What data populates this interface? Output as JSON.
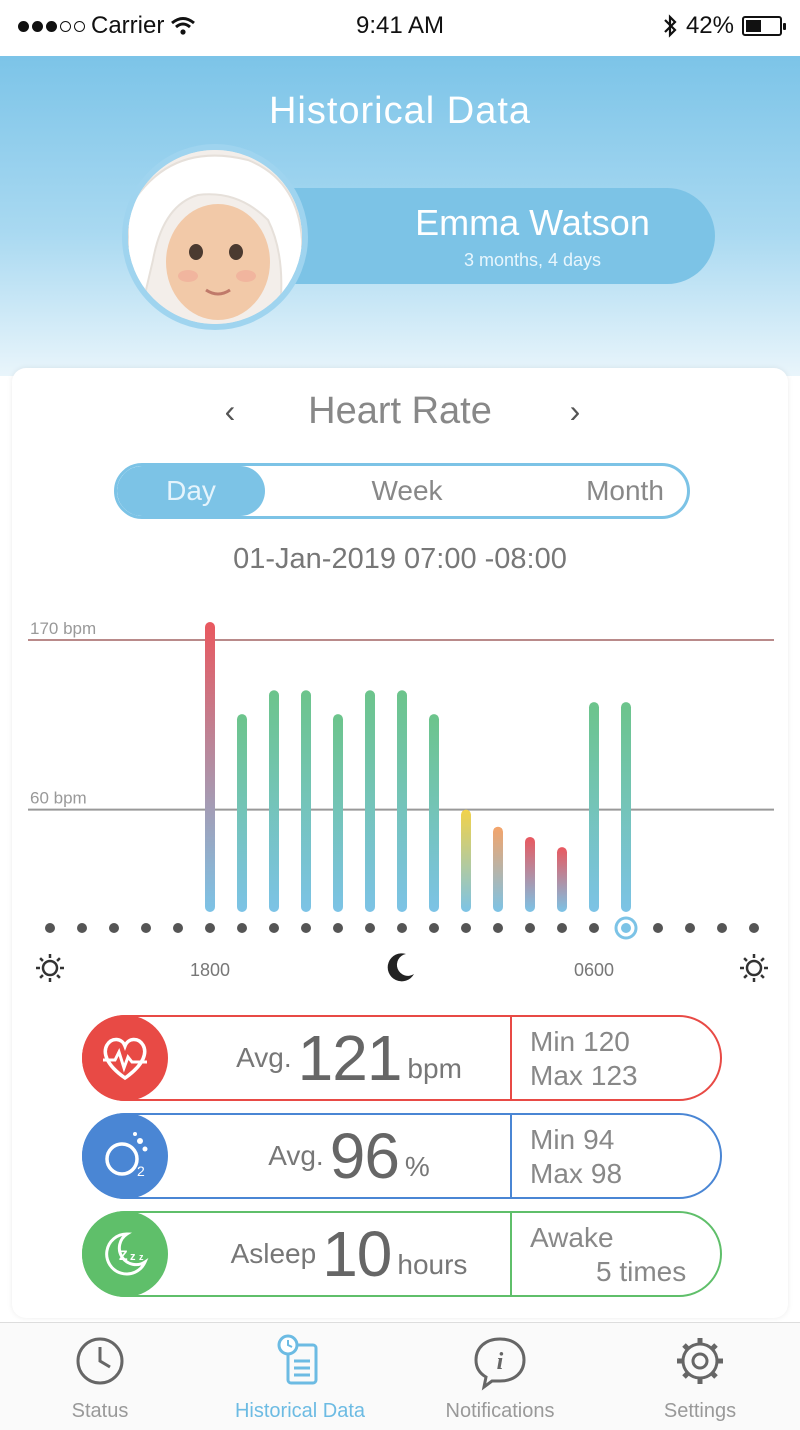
{
  "status_bar": {
    "carrier": "Carrier",
    "time": "9:41 AM",
    "battery": "42%",
    "battery_level": 0.42
  },
  "header": {
    "title": "Historical Data"
  },
  "profile": {
    "name": "Emma Watson",
    "age": "3 months, 4 days"
  },
  "metric": {
    "title": "Heart Rate",
    "prev": "‹",
    "next": "›"
  },
  "range_tabs": [
    {
      "label": "Day",
      "selected": true
    },
    {
      "label": "Week",
      "selected": false
    },
    {
      "label": "Month",
      "selected": false
    }
  ],
  "date_range": "01-Jan-2019 07:00 -08:00",
  "chart_data": {
    "type": "bar",
    "threshold_lines": [
      {
        "label": "170 bpm",
        "value": 170
      },
      {
        "label": "60 bpm",
        "value": 60
      }
    ],
    "ylim": [
      0,
      175
    ],
    "bars": [
      {
        "slot": 5,
        "value": 170,
        "color": "#e9585f"
      },
      {
        "slot": 6,
        "value": 116,
        "color": "#6cc48b"
      },
      {
        "slot": 7,
        "value": 130,
        "color": "#6cc48b"
      },
      {
        "slot": 8,
        "value": 130,
        "color": "#6cc48b"
      },
      {
        "slot": 9,
        "value": 116,
        "color": "#6cc48b"
      },
      {
        "slot": 10,
        "value": 130,
        "color": "#6cc48b"
      },
      {
        "slot": 11,
        "value": 130,
        "color": "#6cc48b"
      },
      {
        "slot": 12,
        "value": 116,
        "color": "#6cc48b"
      },
      {
        "slot": 13,
        "value": 60,
        "color": "#f2d24a"
      },
      {
        "slot": 14,
        "value": 50,
        "color": "#f4a46a"
      },
      {
        "slot": 15,
        "value": 44,
        "color": "#e9585f"
      },
      {
        "slot": 16,
        "value": 38,
        "color": "#e9585f"
      },
      {
        "slot": 17,
        "value": 123,
        "color": "#6cc48b"
      },
      {
        "slot": 18,
        "value": 123,
        "color": "#6cc48b"
      }
    ],
    "slot_count": 23,
    "selected_slot": 18,
    "x_labels": [
      {
        "slot": 5,
        "text": "1800"
      },
      {
        "slot": 17,
        "text": "0600"
      }
    ],
    "x_icons": [
      {
        "slot": 0,
        "icon": "sun-icon"
      },
      {
        "slot": 11,
        "icon": "moon-icon"
      },
      {
        "slot": 22,
        "icon": "sun-icon"
      }
    ],
    "base_color": "#7cc3e6"
  },
  "stats": [
    {
      "icon": "heart-rate-icon",
      "color": "#e84a45",
      "label": "Avg.",
      "value": "121",
      "unit": "bpm",
      "side": [
        {
          "k": "Min",
          "v": "120"
        },
        {
          "k": "Max",
          "v": "123"
        }
      ]
    },
    {
      "icon": "oxygen-icon",
      "color": "#4a86d4",
      "label": "Avg.",
      "value": "96",
      "unit": "%",
      "side": [
        {
          "k": "Min",
          "v": "94"
        },
        {
          "k": "Max",
          "v": "98"
        }
      ]
    },
    {
      "icon": "sleep-icon",
      "color": "#5fbf6a",
      "label": "Asleep",
      "value": "10",
      "unit": "hours",
      "side": [
        {
          "k": "Awake",
          "v": ""
        },
        {
          "k": "",
          "v": "5 times"
        }
      ]
    }
  ],
  "tabbar": [
    {
      "label": "Status",
      "icon": "clock-icon",
      "active": false
    },
    {
      "label": "Historical Data",
      "icon": "history-doc-icon",
      "active": true
    },
    {
      "label": "Notifications",
      "icon": "info-icon",
      "active": false
    },
    {
      "label": "Settings",
      "icon": "gear-icon",
      "active": false
    }
  ]
}
